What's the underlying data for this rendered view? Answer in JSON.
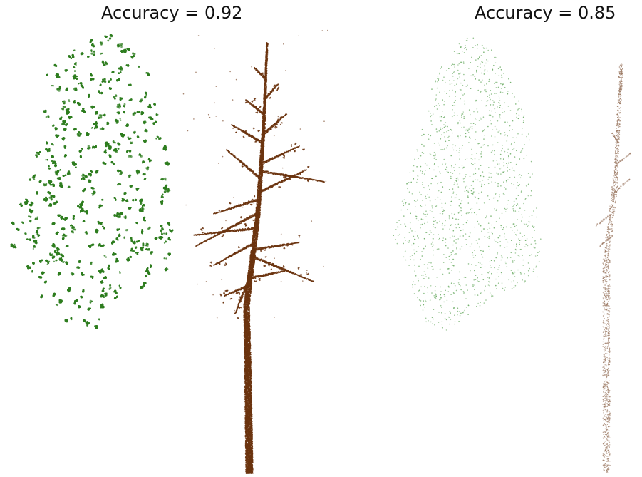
{
  "panels": [
    {
      "title": "Accuracy = 0.92",
      "point_density": "dense",
      "leaf_color": "#2e7d1f",
      "wood_color": "#6b3410"
    },
    {
      "title": "Accuracy = 0.85",
      "point_density": "sparse",
      "leaf_color": "#6fae68",
      "wood_color": "#9c7a64"
    }
  ]
}
